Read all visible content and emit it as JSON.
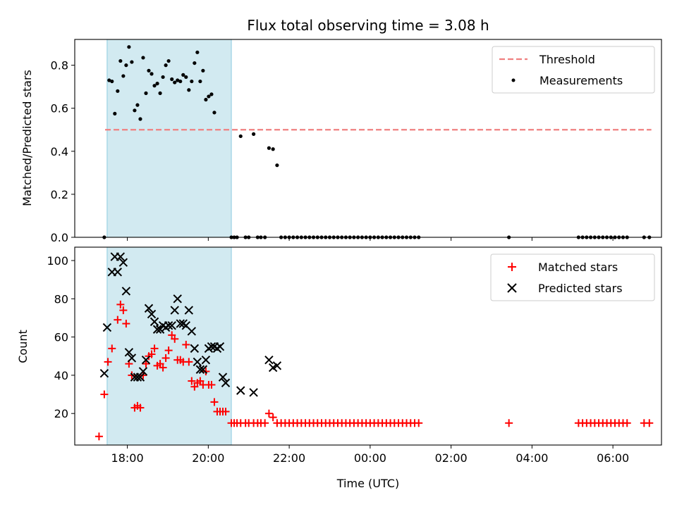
{
  "chart_data": [
    {
      "type": "scatter",
      "title": "Flux total observing time = 3.08 h",
      "xlabel": "",
      "ylabel": "Matched/Predicted stars",
      "ylim": [
        0,
        0.92
      ],
      "xlim": [
        16.7,
        31.2
      ],
      "yticks": [
        "0.0",
        "0.2",
        "0.4",
        "0.6",
        "0.8"
      ],
      "ytick_values": [
        0,
        0.2,
        0.4,
        0.6,
        0.8
      ],
      "shaded_span": [
        17.5,
        20.57
      ],
      "shade_color": "#add8e6",
      "legend_position": "upper right",
      "threshold": {
        "name": "Threshold",
        "value": 0.5,
        "x_range": [
          17.45,
          30.95
        ],
        "color": "#f08080",
        "style": "dashed"
      },
      "series": [
        {
          "name": "Measurements",
          "marker": "dot",
          "color": "#000000",
          "points": [
            [
              17.43,
              0.0
            ],
            [
              17.55,
              0.73
            ],
            [
              17.62,
              0.725
            ],
            [
              17.69,
              0.575
            ],
            [
              17.76,
              0.68
            ],
            [
              17.83,
              0.82
            ],
            [
              17.9,
              0.75
            ],
            [
              17.97,
              0.8
            ],
            [
              18.04,
              0.885
            ],
            [
              18.11,
              0.815
            ],
            [
              18.18,
              0.59
            ],
            [
              18.25,
              0.615
            ],
            [
              18.32,
              0.55
            ],
            [
              18.39,
              0.835
            ],
            [
              18.46,
              0.67
            ],
            [
              18.53,
              0.775
            ],
            [
              18.6,
              0.76
            ],
            [
              18.67,
              0.705
            ],
            [
              18.74,
              0.715
            ],
            [
              18.81,
              0.67
            ],
            [
              18.88,
              0.745
            ],
            [
              18.95,
              0.8
            ],
            [
              19.02,
              0.82
            ],
            [
              19.1,
              0.735
            ],
            [
              19.17,
              0.72
            ],
            [
              19.24,
              0.73
            ],
            [
              19.31,
              0.725
            ],
            [
              19.38,
              0.755
            ],
            [
              19.45,
              0.745
            ],
            [
              19.52,
              0.685
            ],
            [
              19.59,
              0.725
            ],
            [
              19.66,
              0.81
            ],
            [
              19.73,
              0.86
            ],
            [
              19.8,
              0.725
            ],
            [
              19.87,
              0.775
            ],
            [
              19.94,
              0.64
            ],
            [
              20.01,
              0.655
            ],
            [
              20.08,
              0.665
            ],
            [
              20.15,
              0.58
            ],
            [
              20.57,
              0.0
            ],
            [
              20.64,
              0.0
            ],
            [
              20.71,
              0.0
            ],
            [
              20.8,
              0.47
            ],
            [
              20.92,
              0.0
            ],
            [
              21.0,
              0.0
            ],
            [
              21.12,
              0.48
            ],
            [
              21.22,
              0.0
            ],
            [
              21.3,
              0.0
            ],
            [
              21.4,
              0.0
            ],
            [
              21.5,
              0.415
            ],
            [
              21.6,
              0.41
            ],
            [
              21.7,
              0.335
            ],
            [
              21.8,
              0.0
            ],
            [
              21.9,
              0.0
            ],
            [
              22.0,
              0.0
            ],
            [
              22.1,
              0.0
            ],
            [
              22.2,
              0.0
            ],
            [
              22.3,
              0.0
            ],
            [
              22.4,
              0.0
            ],
            [
              22.5,
              0.0
            ],
            [
              22.6,
              0.0
            ],
            [
              22.7,
              0.0
            ],
            [
              22.8,
              0.0
            ],
            [
              22.9,
              0.0
            ],
            [
              23.0,
              0.0
            ],
            [
              23.1,
              0.0
            ],
            [
              23.2,
              0.0
            ],
            [
              23.3,
              0.0
            ],
            [
              23.4,
              0.0
            ],
            [
              23.5,
              0.0
            ],
            [
              23.6,
              0.0
            ],
            [
              23.7,
              0.0
            ],
            [
              23.8,
              0.0
            ],
            [
              23.9,
              0.0
            ],
            [
              24.0,
              0.0
            ],
            [
              24.1,
              0.0
            ],
            [
              24.2,
              0.0
            ],
            [
              24.3,
              0.0
            ],
            [
              24.4,
              0.0
            ],
            [
              24.5,
              0.0
            ],
            [
              24.6,
              0.0
            ],
            [
              24.7,
              0.0
            ],
            [
              24.8,
              0.0
            ],
            [
              24.9,
              0.0
            ],
            [
              25.0,
              0.0
            ],
            [
              25.1,
              0.0
            ],
            [
              25.2,
              0.0
            ],
            [
              27.43,
              0.0
            ],
            [
              29.15,
              0.0
            ],
            [
              29.25,
              0.0
            ],
            [
              29.35,
              0.0
            ],
            [
              29.45,
              0.0
            ],
            [
              29.55,
              0.0
            ],
            [
              29.65,
              0.0
            ],
            [
              29.75,
              0.0
            ],
            [
              29.85,
              0.0
            ],
            [
              29.95,
              0.0
            ],
            [
              30.05,
              0.0
            ],
            [
              30.15,
              0.0
            ],
            [
              30.25,
              0.0
            ],
            [
              30.35,
              0.0
            ],
            [
              30.77,
              0.0
            ],
            [
              30.9,
              0.0
            ]
          ]
        }
      ]
    },
    {
      "type": "scatter",
      "title": "",
      "xlabel": "Time (UTC)",
      "ylabel": "Count",
      "ylim": [
        3.5,
        107
      ],
      "xlim": [
        16.7,
        31.2
      ],
      "xticks": [
        "18:00",
        "20:00",
        "22:00",
        "00:00",
        "02:00",
        "04:00",
        "06:00"
      ],
      "xtick_values": [
        18,
        20,
        22,
        24,
        26,
        28,
        30
      ],
      "yticks": [
        "20",
        "40",
        "60",
        "80",
        "100"
      ],
      "ytick_values": [
        20,
        40,
        60,
        80,
        100
      ],
      "shaded_span": [
        17.5,
        20.57
      ],
      "shade_color": "#add8e6",
      "legend_position": "upper right",
      "series": [
        {
          "name": "Matched stars",
          "marker": "plus",
          "color": "#ff0000",
          "points": [
            [
              17.3,
              8
            ],
            [
              17.43,
              30
            ],
            [
              17.52,
              47
            ],
            [
              17.62,
              54
            ],
            [
              17.76,
              69
            ],
            [
              17.83,
              77
            ],
            [
              17.9,
              74
            ],
            [
              17.97,
              67
            ],
            [
              18.04,
              46
            ],
            [
              18.11,
              40
            ],
            [
              18.18,
              23
            ],
            [
              18.25,
              24
            ],
            [
              18.32,
              23
            ],
            [
              18.39,
              40
            ],
            [
              18.46,
              46
            ],
            [
              18.53,
              50
            ],
            [
              18.6,
              51
            ],
            [
              18.67,
              54
            ],
            [
              18.74,
              45
            ],
            [
              18.81,
              46
            ],
            [
              18.88,
              44
            ],
            [
              18.95,
              49
            ],
            [
              19.02,
              53
            ],
            [
              19.1,
              61
            ],
            [
              19.17,
              59
            ],
            [
              19.24,
              48
            ],
            [
              19.31,
              48
            ],
            [
              19.38,
              47
            ],
            [
              19.45,
              56
            ],
            [
              19.52,
              47
            ],
            [
              19.59,
              37
            ],
            [
              19.66,
              34
            ],
            [
              19.73,
              36
            ],
            [
              19.8,
              37
            ],
            [
              19.87,
              35
            ],
            [
              19.94,
              42
            ],
            [
              20.01,
              35
            ],
            [
              20.08,
              35
            ],
            [
              20.15,
              26
            ],
            [
              20.22,
              21
            ],
            [
              20.29,
              21
            ],
            [
              20.36,
              21
            ],
            [
              20.43,
              21
            ],
            [
              20.57,
              15
            ],
            [
              20.64,
              15
            ],
            [
              20.71,
              15
            ],
            [
              20.8,
              15
            ],
            [
              20.92,
              15
            ],
            [
              21.0,
              15
            ],
            [
              21.12,
              15
            ],
            [
              21.22,
              15
            ],
            [
              21.3,
              15
            ],
            [
              21.4,
              15
            ],
            [
              21.5,
              20
            ],
            [
              21.6,
              18
            ],
            [
              21.7,
              15
            ],
            [
              21.8,
              15
            ],
            [
              21.9,
              15
            ],
            [
              22.0,
              15
            ],
            [
              22.1,
              15
            ],
            [
              22.2,
              15
            ],
            [
              22.3,
              15
            ],
            [
              22.4,
              15
            ],
            [
              22.5,
              15
            ],
            [
              22.6,
              15
            ],
            [
              22.7,
              15
            ],
            [
              22.8,
              15
            ],
            [
              22.9,
              15
            ],
            [
              23.0,
              15
            ],
            [
              23.1,
              15
            ],
            [
              23.2,
              15
            ],
            [
              23.3,
              15
            ],
            [
              23.4,
              15
            ],
            [
              23.5,
              15
            ],
            [
              23.6,
              15
            ],
            [
              23.7,
              15
            ],
            [
              23.8,
              15
            ],
            [
              23.9,
              15
            ],
            [
              24.0,
              15
            ],
            [
              24.1,
              15
            ],
            [
              24.2,
              15
            ],
            [
              24.3,
              15
            ],
            [
              24.4,
              15
            ],
            [
              24.5,
              15
            ],
            [
              24.6,
              15
            ],
            [
              24.7,
              15
            ],
            [
              24.8,
              15
            ],
            [
              24.9,
              15
            ],
            [
              25.0,
              15
            ],
            [
              25.1,
              15
            ],
            [
              25.2,
              15
            ],
            [
              27.43,
              15
            ],
            [
              29.15,
              15
            ],
            [
              29.25,
              15
            ],
            [
              29.35,
              15
            ],
            [
              29.45,
              15
            ],
            [
              29.55,
              15
            ],
            [
              29.65,
              15
            ],
            [
              29.75,
              15
            ],
            [
              29.85,
              15
            ],
            [
              29.95,
              15
            ],
            [
              30.05,
              15
            ],
            [
              30.15,
              15
            ],
            [
              30.25,
              15
            ],
            [
              30.35,
              15
            ],
            [
              30.77,
              15
            ],
            [
              30.9,
              15
            ]
          ]
        },
        {
          "name": "Predicted stars",
          "marker": "x",
          "color": "#000000",
          "points": [
            [
              17.43,
              41
            ],
            [
              17.5,
              65
            ],
            [
              17.62,
              94
            ],
            [
              17.69,
              102
            ],
            [
              17.76,
              94
            ],
            [
              17.83,
              102
            ],
            [
              17.9,
              99
            ],
            [
              17.97,
              84
            ],
            [
              18.04,
              52
            ],
            [
              18.11,
              49
            ],
            [
              18.18,
              39
            ],
            [
              18.25,
              39
            ],
            [
              18.32,
              39
            ],
            [
              18.39,
              42
            ],
            [
              18.46,
              48
            ],
            [
              18.53,
              75
            ],
            [
              18.6,
              72
            ],
            [
              18.67,
              68
            ],
            [
              18.74,
              64
            ],
            [
              18.81,
              64
            ],
            [
              18.88,
              66
            ],
            [
              18.95,
              65
            ],
            [
              19.02,
              66
            ],
            [
              19.1,
              66
            ],
            [
              19.17,
              74
            ],
            [
              19.24,
              80
            ],
            [
              19.31,
              67
            ],
            [
              19.38,
              67
            ],
            [
              19.45,
              66
            ],
            [
              19.52,
              74
            ],
            [
              19.59,
              63
            ],
            [
              19.66,
              54
            ],
            [
              19.73,
              47
            ],
            [
              19.8,
              43
            ],
            [
              19.87,
              43
            ],
            [
              19.94,
              48
            ],
            [
              20.01,
              54
            ],
            [
              20.08,
              55
            ],
            [
              20.15,
              55
            ],
            [
              20.22,
              54
            ],
            [
              20.29,
              55
            ],
            [
              20.36,
              39
            ],
            [
              20.43,
              36
            ],
            [
              20.8,
              32
            ],
            [
              21.12,
              31
            ],
            [
              21.5,
              48
            ],
            [
              21.6,
              44
            ],
            [
              21.7,
              45
            ]
          ]
        }
      ]
    }
  ]
}
